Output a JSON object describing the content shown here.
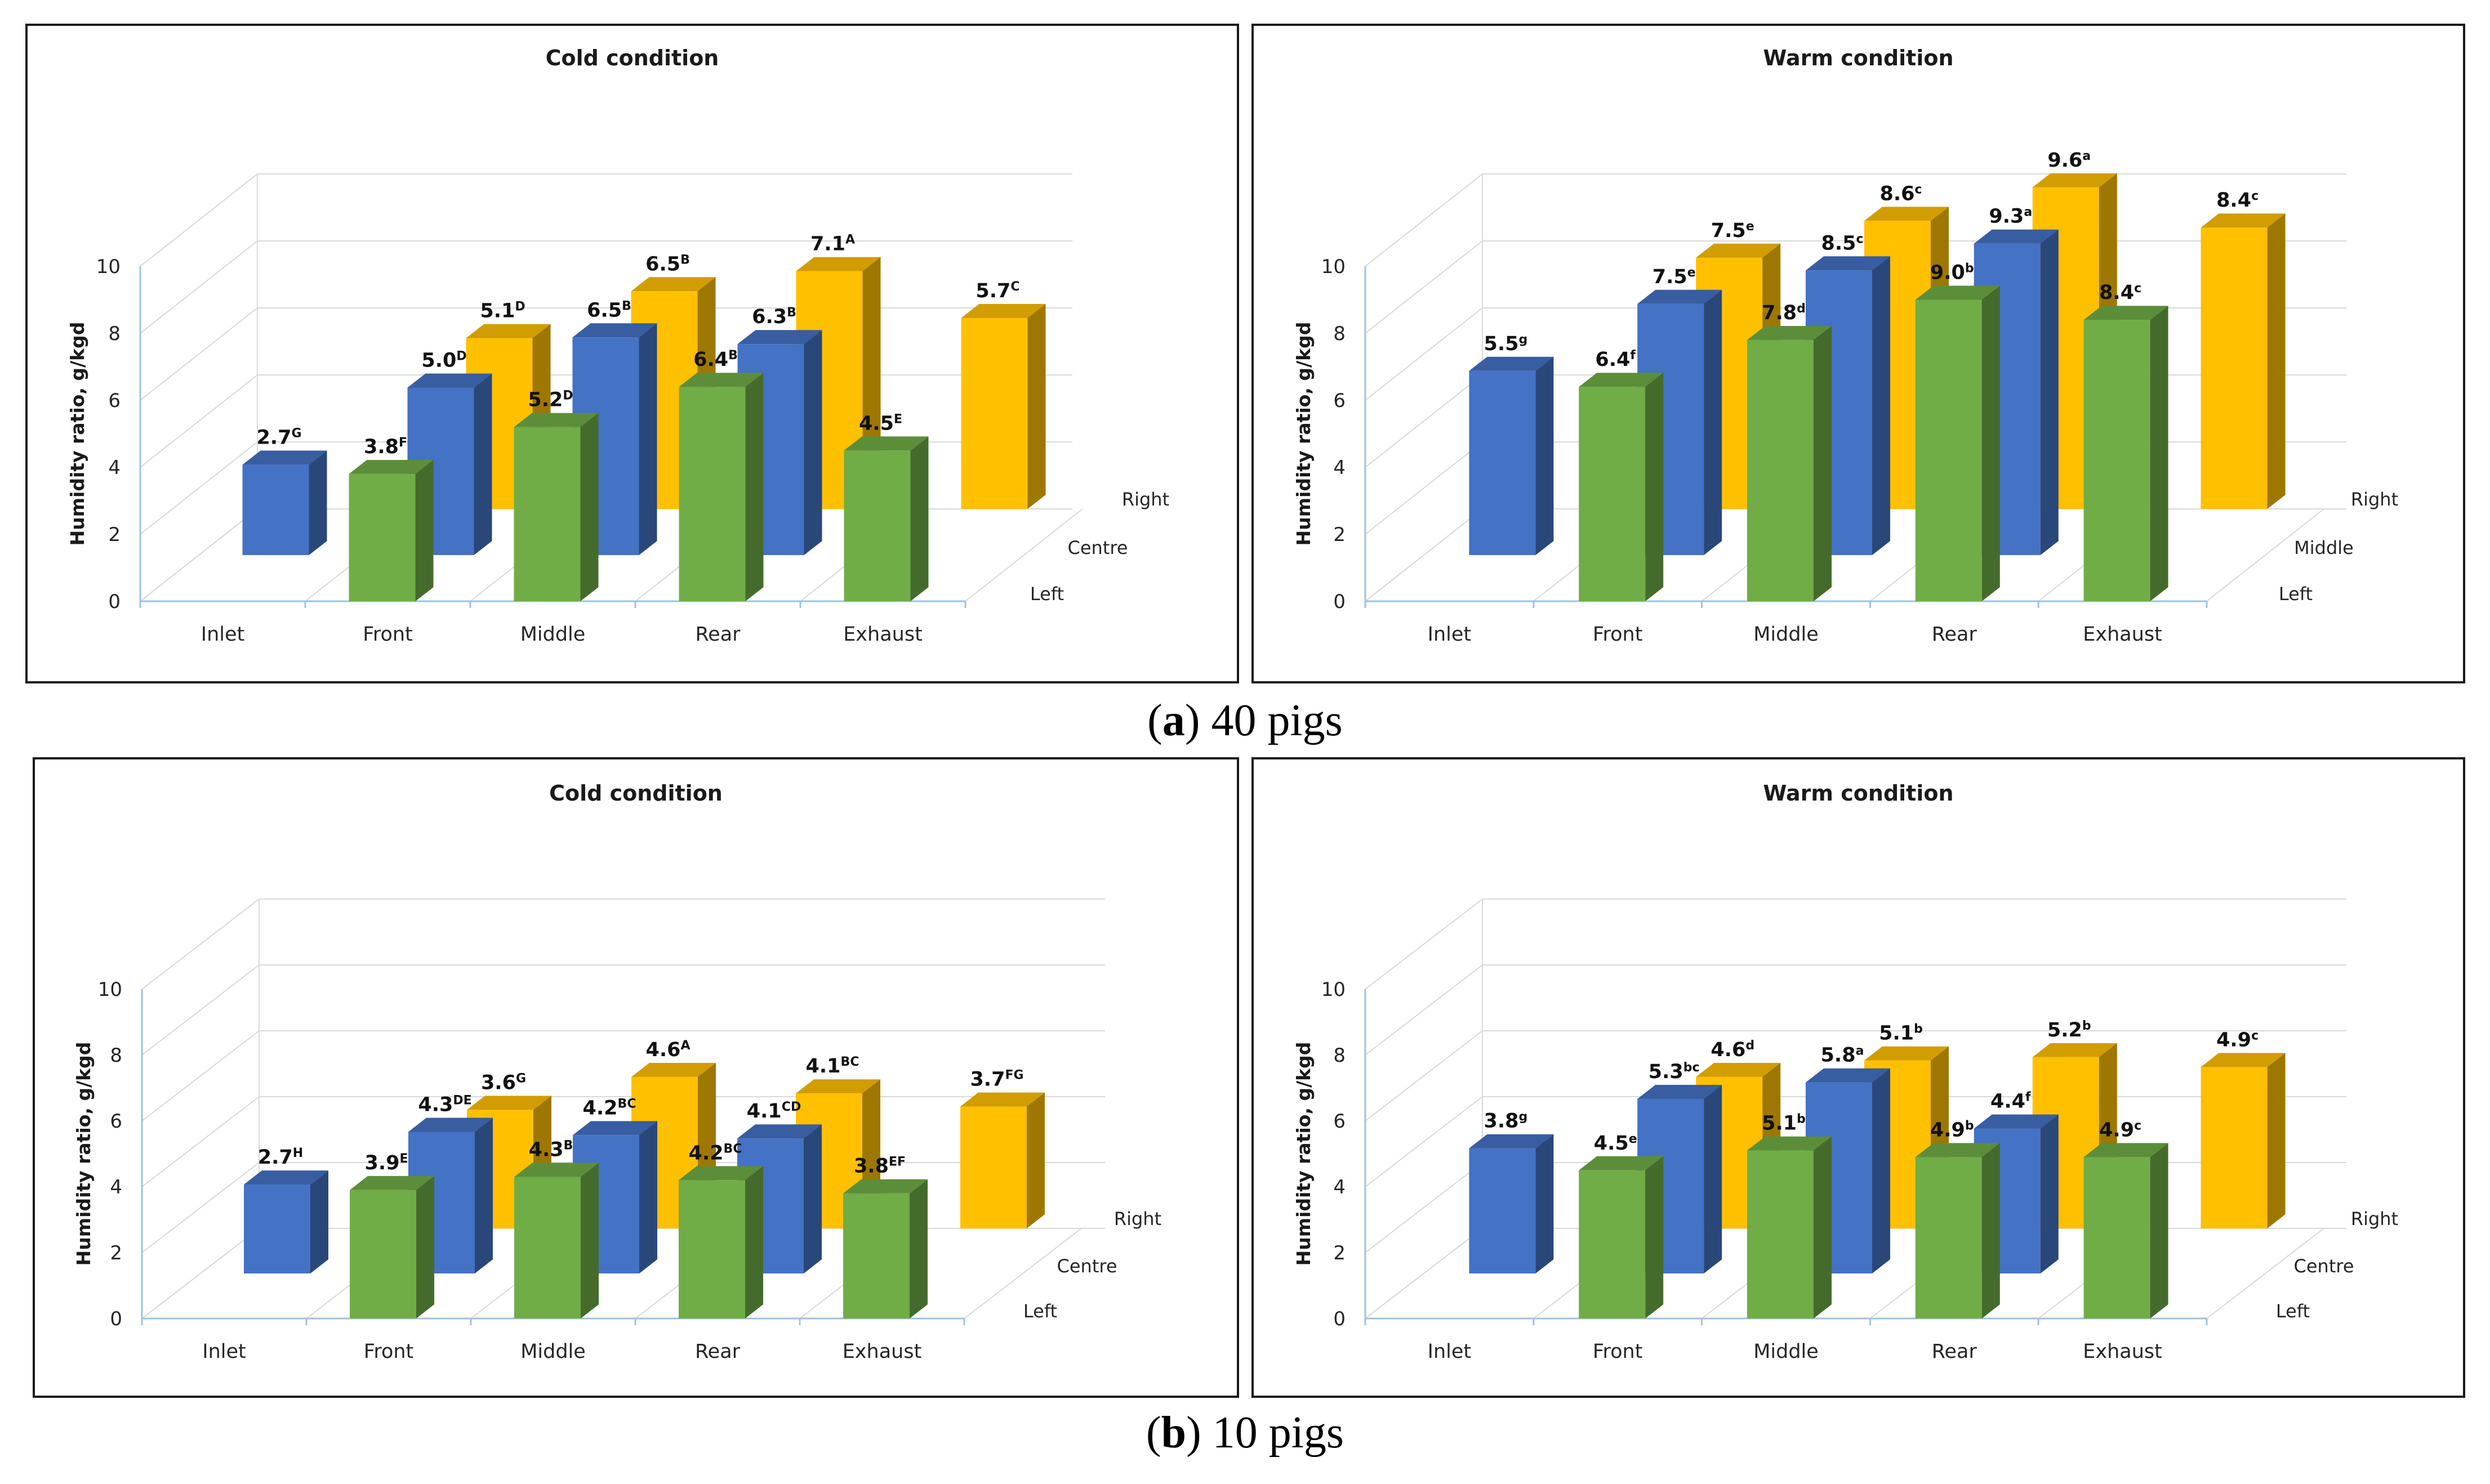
{
  "figure": {
    "captions": [
      {
        "letter": "a",
        "text": "40 pigs"
      },
      {
        "letter": "b",
        "text": "10 pigs"
      }
    ]
  },
  "colors": {
    "left": "#70ad47",
    "centre": "#4472c4",
    "right": "#ffc000"
  },
  "chart_data": [
    {
      "type": "bar",
      "title": "Cold condition",
      "ylabel": "Humidity ratio, g/kgd",
      "ylim": [
        0,
        10
      ],
      "yticks": [
        "0",
        "2",
        "4",
        "6",
        "8",
        "10"
      ],
      "categories": [
        "Inlet",
        "Front",
        "Middle",
        "Rear",
        "Exhaust"
      ],
      "series": [
        {
          "name": "Left",
          "color": "#70ad47",
          "values": [
            null,
            3.8,
            5.2,
            6.4,
            4.5
          ],
          "letters": [
            null,
            "F",
            "D",
            "B",
            "E"
          ]
        },
        {
          "name": "Centre",
          "color": "#4472c4",
          "values": [
            2.7,
            5.0,
            6.5,
            6.3,
            null
          ],
          "letters": [
            "G",
            "D",
            "B",
            "B",
            null
          ]
        },
        {
          "name": "Right",
          "color": "#ffc000",
          "values": [
            null,
            5.1,
            6.5,
            7.1,
            5.7
          ],
          "letters": [
            null,
            "D",
            "B",
            "A",
            "C"
          ]
        }
      ]
    },
    {
      "type": "bar",
      "title": "Warm condition",
      "ylabel": "Humidity ratio, g/kgd",
      "ylim": [
        0,
        10
      ],
      "yticks": [
        "0",
        "2",
        "4",
        "6",
        "8",
        "10"
      ],
      "categories": [
        "Inlet",
        "Front",
        "Middle",
        "Rear",
        "Exhaust"
      ],
      "series": [
        {
          "name": "Left",
          "color": "#70ad47",
          "values": [
            null,
            6.4,
            7.8,
            9.0,
            8.4
          ],
          "letters": [
            null,
            "f",
            "d",
            "b",
            "c"
          ]
        },
        {
          "name": "Middle",
          "color": "#4472c4",
          "values": [
            5.5,
            7.5,
            8.5,
            9.3,
            null
          ],
          "letters": [
            "g",
            "e",
            "c",
            "a",
            null
          ]
        },
        {
          "name": "Right",
          "color": "#ffc000",
          "values": [
            null,
            7.5,
            8.6,
            9.6,
            8.4
          ],
          "letters": [
            null,
            "e",
            "c",
            "a",
            "c"
          ]
        }
      ]
    },
    {
      "type": "bar",
      "title": "Cold condition",
      "ylabel": "Humidity ratio, g/kgd",
      "ylim": [
        0,
        10
      ],
      "yticks": [
        "0",
        "2",
        "4",
        "6",
        "8",
        "10"
      ],
      "categories": [
        "Inlet",
        "Front",
        "Middle",
        "Rear",
        "Exhaust"
      ],
      "series": [
        {
          "name": "Left",
          "color": "#70ad47",
          "values": [
            null,
            3.9,
            4.3,
            4.2,
            3.8
          ],
          "letters": [
            null,
            "E",
            "B",
            "BC",
            "EF"
          ]
        },
        {
          "name": "Centre",
          "color": "#4472c4",
          "values": [
            2.7,
            4.3,
            4.2,
            4.1,
            null
          ],
          "letters": [
            "H",
            "DE",
            "BC",
            "CD",
            null
          ]
        },
        {
          "name": "Right",
          "color": "#ffc000",
          "values": [
            null,
            3.6,
            4.6,
            4.1,
            3.7
          ],
          "letters": [
            null,
            "G",
            "A",
            "BC",
            "FG"
          ]
        }
      ]
    },
    {
      "type": "bar",
      "title": "Warm condition",
      "ylabel": "Humidity ratio, g/kgd",
      "ylim": [
        0,
        10
      ],
      "yticks": [
        "0",
        "2",
        "4",
        "6",
        "8",
        "10"
      ],
      "categories": [
        "Inlet",
        "Front",
        "Middle",
        "Rear",
        "Exhaust"
      ],
      "series": [
        {
          "name": "Left",
          "color": "#70ad47",
          "values": [
            null,
            4.5,
            5.1,
            4.9,
            4.9
          ],
          "letters": [
            null,
            "e",
            "b",
            "b",
            "c"
          ]
        },
        {
          "name": "Centre",
          "color": "#4472c4",
          "values": [
            3.8,
            5.3,
            5.8,
            4.4,
            null
          ],
          "letters": [
            "g",
            "bc",
            "a",
            "f",
            null
          ]
        },
        {
          "name": "Right",
          "color": "#ffc000",
          "values": [
            null,
            4.6,
            5.1,
            5.2,
            4.9
          ],
          "letters": [
            null,
            "d",
            "b",
            "b",
            "c"
          ]
        }
      ]
    }
  ]
}
